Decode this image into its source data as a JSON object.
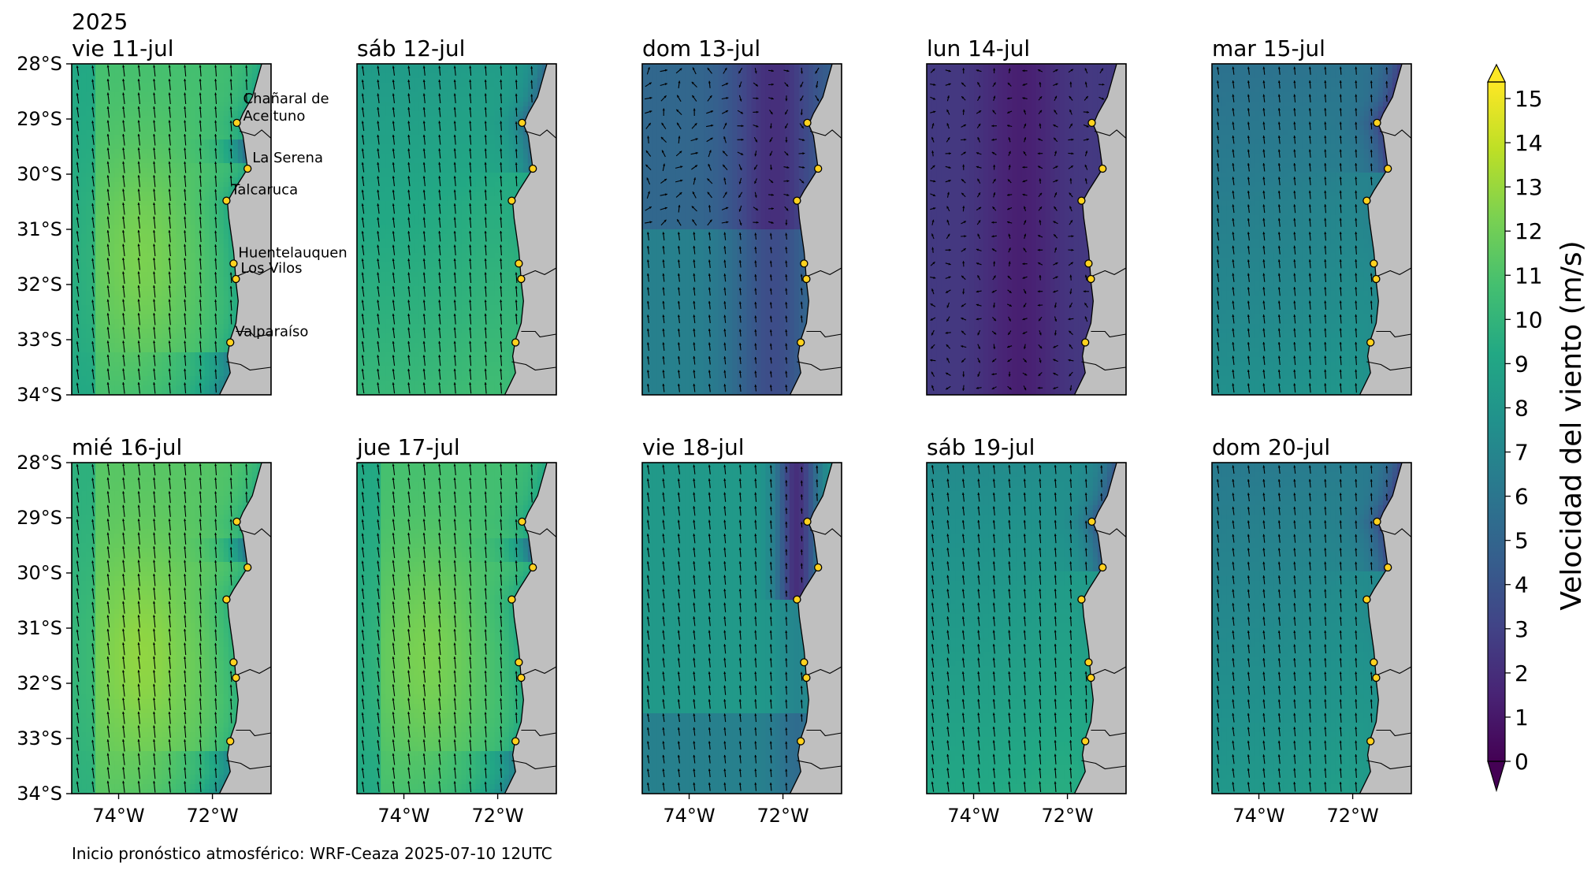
{
  "year_label": "2025",
  "panels": [
    {
      "title": "vie 11-jul",
      "regime": "strong_south",
      "base": 10.5
    },
    {
      "title": "sáb 12-jul",
      "regime": "moderate_south",
      "base": 9
    },
    {
      "title": "dom 13-jul",
      "regime": "calm_north",
      "base": 5
    },
    {
      "title": "lun 14-jul",
      "regime": "calm",
      "base": 2.5
    },
    {
      "title": "mar 15-jul",
      "regime": "moderate_south",
      "base": 6.5
    },
    {
      "title": "mié 16-jul",
      "regime": "strong_south",
      "base": 11
    },
    {
      "title": "jue 17-jul",
      "regime": "strong_south",
      "base": 10.5
    },
    {
      "title": "vie 18-jul",
      "regime": "moderate_south_calm_coast",
      "base": 8
    },
    {
      "title": "sáb 19-jul",
      "regime": "moderate_south",
      "base": 8
    },
    {
      "title": "dom 20-jul",
      "regime": "moderate_south",
      "base": 7
    }
  ],
  "lat_ticks": [
    "28°S",
    "29°S",
    "30°S",
    "31°S",
    "32°S",
    "33°S",
    "34°S"
  ],
  "lon_ticks": [
    "74°W",
    "72°W"
  ],
  "stations": [
    {
      "name": "Chañaral de Aceituno",
      "line1": "Chañaral de",
      "line2": "Aceituno",
      "lat": -29.07,
      "lon": -71.48
    },
    {
      "name": "La Serena",
      "lat": -29.9,
      "lon": -71.25
    },
    {
      "name": "Talcaruca",
      "lat": -30.48,
      "lon": -71.7
    },
    {
      "name": "Huentelauquen",
      "lat": -31.62,
      "lon": -71.55
    },
    {
      "name": "Los Vilos",
      "lat": -31.9,
      "lon": -71.5
    },
    {
      "name": "Valparaíso",
      "lat": -33.05,
      "lon": -71.62
    }
  ],
  "colorbar": {
    "label": "Velocidad del viento (m/s)",
    "ticks": [
      "0",
      "1",
      "2",
      "3",
      "4",
      "5",
      "6",
      "7",
      "8",
      "9",
      "10",
      "11",
      "12",
      "13",
      "14",
      "15"
    ],
    "min": 0,
    "max": 15,
    "colors": [
      "#440154",
      "#482475",
      "#414487",
      "#355f8d",
      "#2a788e",
      "#21918c",
      "#22a884",
      "#44bf70",
      "#7ad151",
      "#bddf26",
      "#fde725"
    ]
  },
  "footer": "Inicio pronóstico atmosférico: WRF-Ceaza 2025-07-10 12UTC"
}
